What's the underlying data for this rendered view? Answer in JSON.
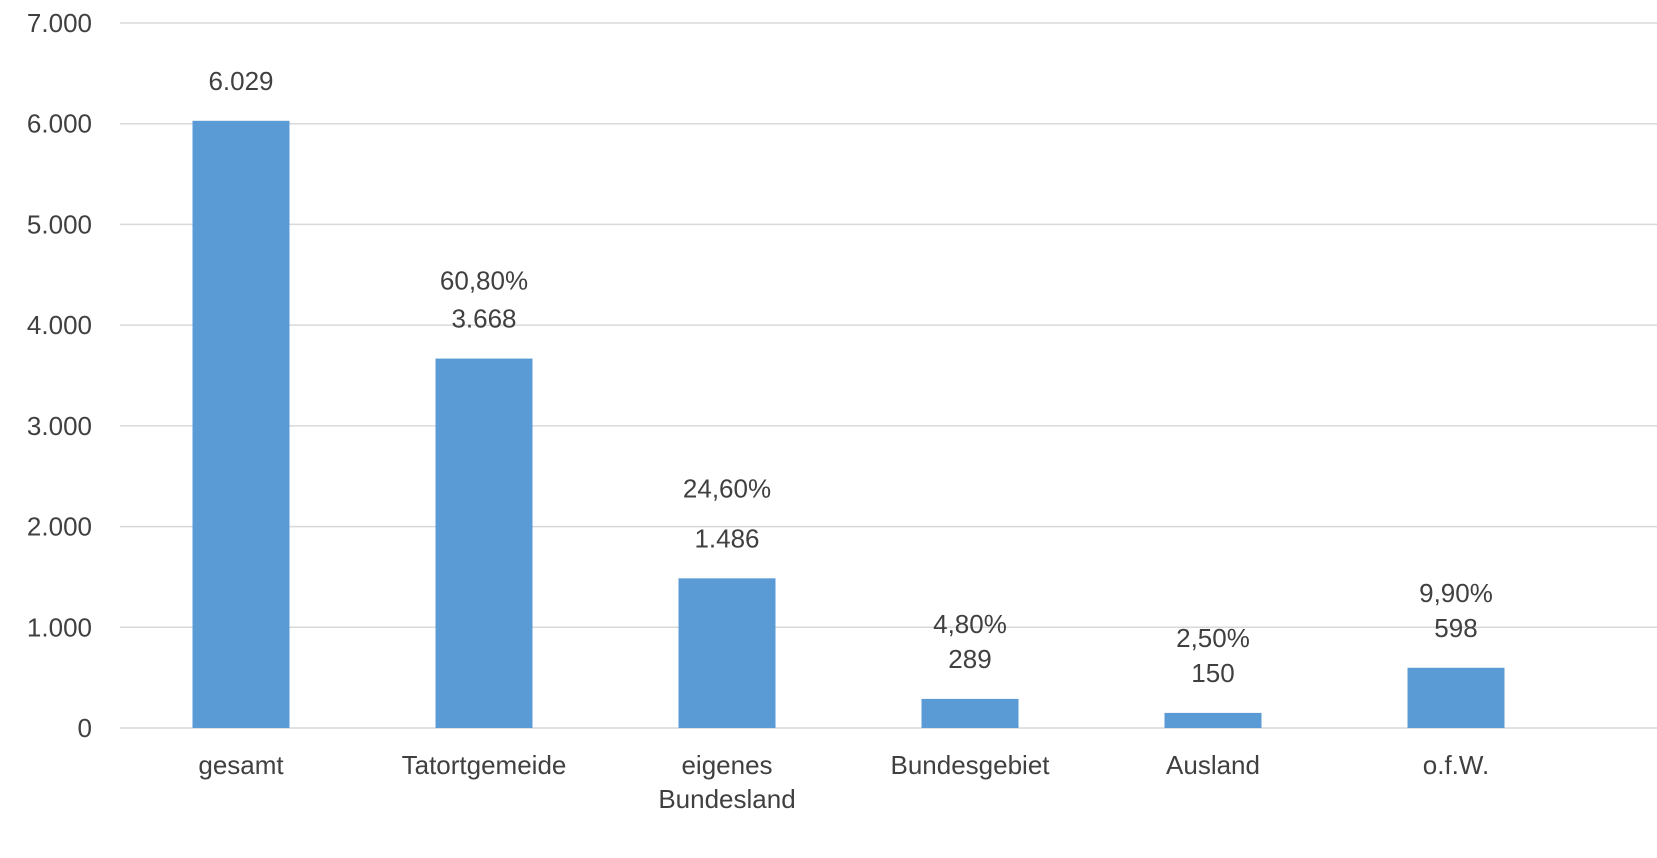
{
  "chart_data": {
    "type": "bar",
    "title": "",
    "xlabel": "",
    "ylabel": "",
    "categories": [
      [
        "gesamt"
      ],
      [
        "Tatortgemeide"
      ],
      [
        "eigenes",
        "Bundesland"
      ],
      [
        "Bundesgebiet"
      ],
      [
        "Ausland"
      ],
      [
        "o.f.W."
      ]
    ],
    "values": [
      6029,
      3668,
      1486,
      289,
      150,
      598
    ],
    "value_labels": [
      "6.029",
      "3.668",
      "1.486",
      "289",
      "150",
      "598"
    ],
    "percent_labels": [
      "",
      "60,80%",
      "24,60%",
      "4,80%",
      "2,50%",
      "9,90%"
    ],
    "ylim": [
      0,
      7000
    ],
    "yticks": [
      0,
      1000,
      2000,
      3000,
      4000,
      5000,
      6000,
      7000
    ],
    "ytick_labels": [
      "0",
      "1.000",
      "2.000",
      "3.000",
      "4.000",
      "5.000",
      "6.000",
      "7.000"
    ],
    "grid": true,
    "legend": "none",
    "bar_color": "#5b9bd5"
  }
}
